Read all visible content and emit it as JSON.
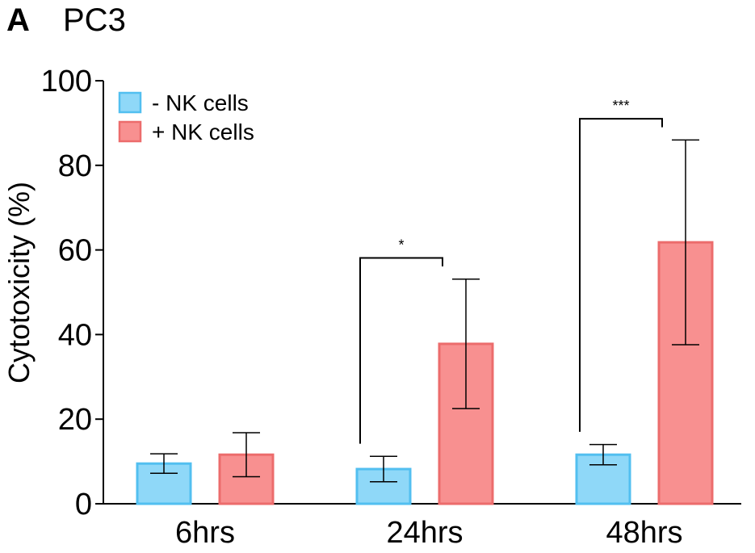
{
  "panel": {
    "letter": "A",
    "title": "PC3"
  },
  "chart_data": {
    "type": "bar",
    "title": "PC3",
    "xlabel": "",
    "ylabel": "Cytotoxicity (%)",
    "ylim": [
      0,
      100
    ],
    "yticks": [
      0,
      20,
      40,
      60,
      80,
      100
    ],
    "categories": [
      "6hrs",
      "24hrs",
      "48hrs"
    ],
    "series": [
      {
        "name": "- NK cells",
        "color": "#8fd8f8",
        "stroke": "#52bff0",
        "values": [
          9.5,
          8.2,
          11.6
        ],
        "errors": [
          2.3,
          3.0,
          2.4
        ]
      },
      {
        "name": "+ NK cells",
        "color": "#f89090",
        "stroke": "#ec6c6c",
        "values": [
          11.6,
          37.8,
          61.8
        ],
        "errors": [
          5.2,
          15.3,
          24.2
        ]
      }
    ],
    "significance": [
      {
        "category": "24hrs",
        "label": "*"
      },
      {
        "category": "48hrs",
        "label": "***"
      }
    ],
    "legend_position": "top-left",
    "grid": false
  }
}
